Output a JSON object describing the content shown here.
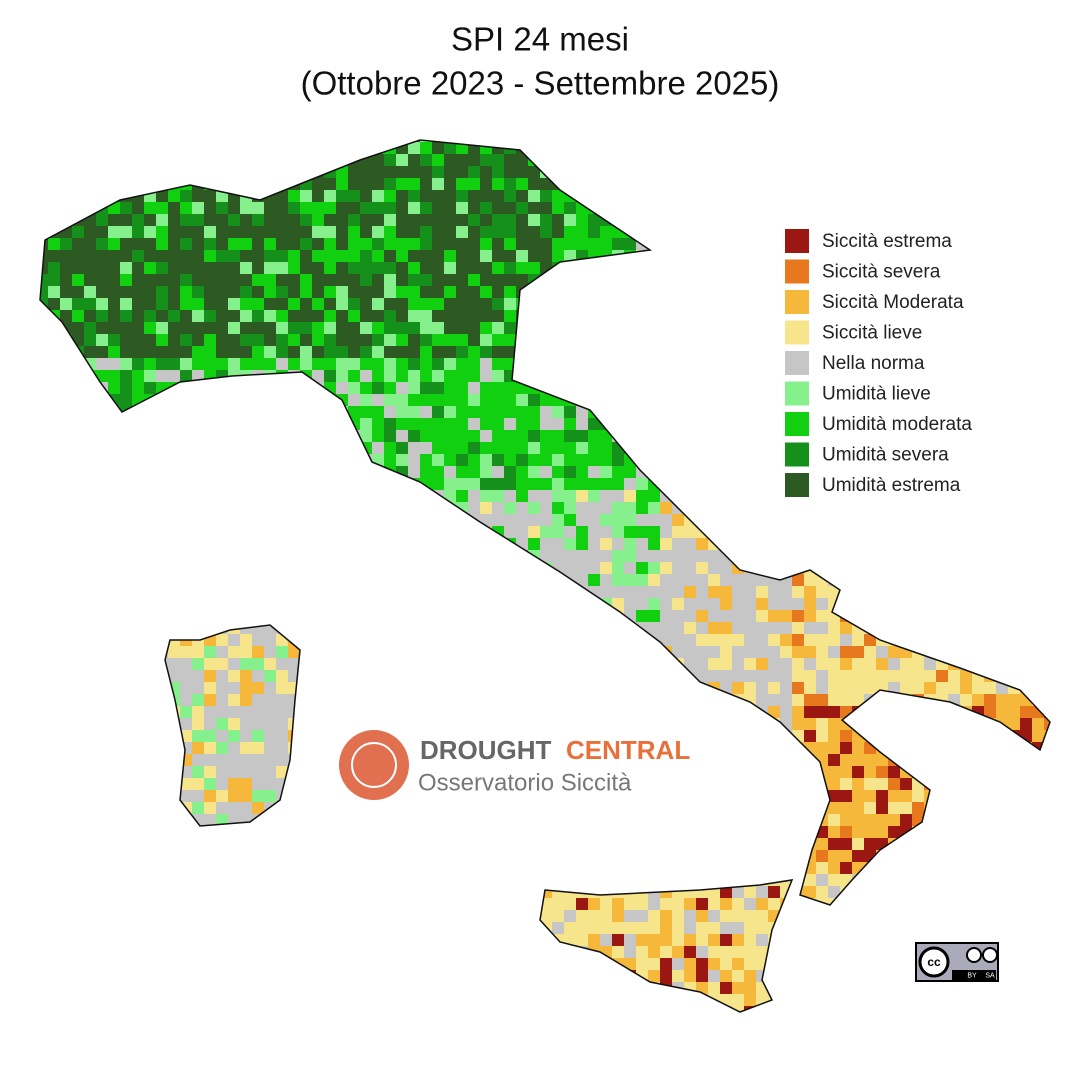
{
  "title": [
    "SPI 24 mesi",
    "(Ottobre 2023 - Settembre 2025)"
  ],
  "legend": [
    {
      "label": "Siccità estrema",
      "color": "#9b1712"
    },
    {
      "label": "Siccità severa",
      "color": "#e8781e"
    },
    {
      "label": "Siccità Moderata",
      "color": "#f5b83a"
    },
    {
      "label": "Siccità lieve",
      "color": "#f7e58c"
    },
    {
      "label": "Nella norma",
      "color": "#c6c6c6"
    },
    {
      "label": "Umidità lieve",
      "color": "#86f08c"
    },
    {
      "label": "Umidità moderata",
      "color": "#10d010"
    },
    {
      "label": "Umidità severa",
      "color": "#15901b"
    },
    {
      "label": "Umidità estrema",
      "color": "#2d5a22"
    }
  ],
  "logo": {
    "name_1": "DROUGHT",
    "name_2": "CENTRAL",
    "subtitle": "Osservatorio Siccità"
  },
  "license": {
    "badge": "cc",
    "by": "BY",
    "sa": "SA"
  }
}
